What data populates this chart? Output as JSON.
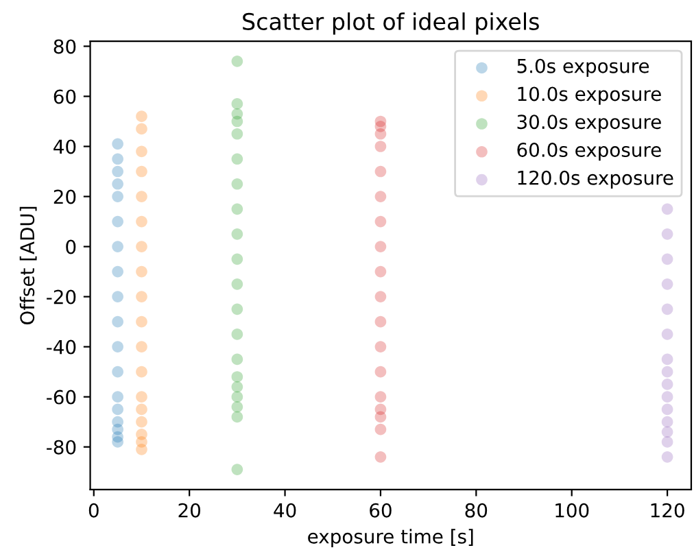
{
  "chart_data": {
    "type": "scatter",
    "title": "Scatter plot of ideal pixels",
    "xlabel": "exposure time [s]",
    "ylabel": "Offset [ADU]",
    "xlim": [
      -0.75,
      125
    ],
    "ylim": [
      -97,
      82
    ],
    "xticks": [
      0,
      20,
      40,
      60,
      80,
      100,
      120
    ],
    "yticks": [
      -80,
      -60,
      -40,
      -20,
      0,
      20,
      40,
      60,
      80
    ],
    "legend": "top right",
    "grid": false,
    "marker": "circle",
    "series": [
      {
        "name": "5.0s exposure",
        "color": "#1f77b4",
        "x": [
          5,
          5,
          5,
          5,
          5,
          5,
          5,
          5,
          5,
          5,
          5,
          5,
          5,
          5,
          5,
          5,
          5,
          5
        ],
        "values": [
          41,
          35,
          30,
          25,
          20,
          10,
          0,
          -10,
          -20,
          -30,
          -40,
          -50,
          -60,
          -65,
          -70,
          -73,
          -76,
          -78
        ]
      },
      {
        "name": "10.0s exposure",
        "color": "#ff7f0e",
        "x": [
          10,
          10,
          10,
          10,
          10,
          10,
          10,
          10,
          10,
          10,
          10,
          10,
          10,
          10,
          10,
          10,
          10,
          10
        ],
        "values": [
          52,
          47,
          38,
          30,
          20,
          10,
          0,
          -10,
          -20,
          -30,
          -40,
          -50,
          -60,
          -65,
          -70,
          -75,
          -78,
          -81
        ]
      },
      {
        "name": "30.0s exposure",
        "color": "#2ca02c",
        "x": [
          30,
          30,
          30,
          30,
          30,
          30,
          30,
          30,
          30,
          30,
          30,
          30,
          30,
          30,
          30,
          30,
          30,
          30,
          30,
          30
        ],
        "values": [
          74,
          57,
          53,
          50,
          45,
          35,
          25,
          15,
          5,
          -5,
          -15,
          -25,
          -35,
          -45,
          -52,
          -56,
          -60,
          -64,
          -68,
          -89
        ]
      },
      {
        "name": "60.0s exposure",
        "color": "#d62728",
        "x": [
          60,
          60,
          60,
          60,
          60,
          60,
          60,
          60,
          60,
          60,
          60,
          60,
          60,
          60,
          60,
          60,
          60,
          60
        ],
        "values": [
          50,
          48,
          45,
          40,
          30,
          20,
          10,
          0,
          -10,
          -20,
          -30,
          -40,
          -50,
          -60,
          -65,
          -68,
          -73,
          -84
        ]
      },
      {
        "name": "120.0s exposure",
        "color": "#9467bd",
        "x": [
          120,
          120,
          120,
          120,
          120,
          120,
          120,
          120,
          120,
          120,
          120,
          120,
          120,
          120,
          120
        ],
        "values": [
          15,
          5,
          -5,
          -15,
          -25,
          -35,
          -45,
          -50,
          -55,
          -60,
          -65,
          -70,
          -74,
          -78,
          -84
        ]
      }
    ]
  }
}
